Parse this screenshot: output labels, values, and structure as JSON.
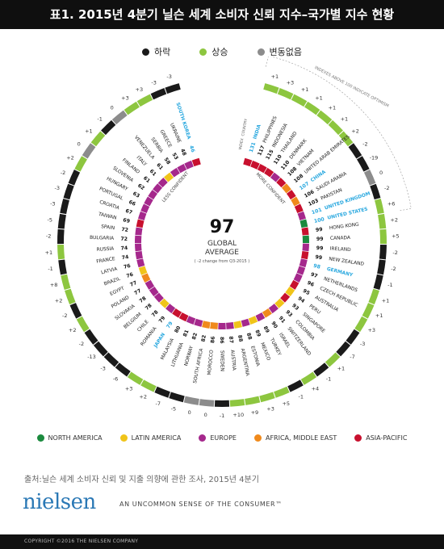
{
  "title": "표1. 2015년 4분기 닐슨 세계 소비자 신뢰 지수–국가별 지수 현황",
  "status_legend": [
    {
      "label": "하락",
      "color": "#1a1a1a"
    },
    {
      "label": "상승",
      "color": "#8dc63f"
    },
    {
      "label": "변동없음",
      "color": "#8c8c8c"
    }
  ],
  "chart_data": {
    "type": "radial-bar",
    "title": "97",
    "center_value": "97",
    "center_label_1": "GLOBAL",
    "center_label_2": "AVERAGE",
    "center_note": "( -2 change from Q3-2015 )",
    "less_confident_label": "LESS CONFIDENT",
    "more_confident_label": "MORE CONFIDENT",
    "optimism_note": "INDEXES ABOVE 100 INDICATE OPTIMISM",
    "header_labels": [
      "INDEX",
      "COUNTRY"
    ],
    "region_colors": {
      "NA": "#1b8a3e",
      "LA": "#f0c419",
      "EU": "#a5288c",
      "AME": "#f08a1c",
      "AP": "#c8102e"
    },
    "status_colors": {
      "down": "#1a1a1a",
      "up": "#8dc63f",
      "same": "#8c8c8c"
    },
    "highlight_color": "#29a8df",
    "countries": [
      {
        "country": "INDIA",
        "index": 131,
        "change": "+1",
        "region": "AP",
        "hl": true
      },
      {
        "country": "PHILIPPINES",
        "index": 117,
        "change": "+3",
        "region": "AP"
      },
      {
        "country": "INDONESIA",
        "index": 115,
        "change": "+1",
        "region": "AP"
      },
      {
        "country": "THAILAND",
        "index": 110,
        "change": "+1",
        "region": "AP"
      },
      {
        "country": "DENMARK",
        "index": 110,
        "change": "+1",
        "region": "EU"
      },
      {
        "country": "VIETNAM",
        "index": 108,
        "change": "+1",
        "region": "AP"
      },
      {
        "country": "UNITED ARAB EMIRATES",
        "index": 108,
        "change": "+2",
        "region": "AME"
      },
      {
        "country": "CHINA",
        "index": 107,
        "change": "-2",
        "region": "AP",
        "hl": true
      },
      {
        "country": "SAUDI ARABIA",
        "index": 106,
        "change": "-19",
        "region": "AME"
      },
      {
        "country": "PAKISTAN",
        "index": 103,
        "change": "0",
        "region": "AP"
      },
      {
        "country": "UNITED KINGDOM",
        "index": 101,
        "change": "-2",
        "region": "EU",
        "hl": true
      },
      {
        "country": "UNITED STATES",
        "index": 100,
        "change": "+6",
        "region": "NA",
        "hl": true
      },
      {
        "country": "HONG KONG",
        "index": 99,
        "change": "+2",
        "region": "AP"
      },
      {
        "country": "CANADA",
        "index": 99,
        "change": "+5",
        "region": "NA"
      },
      {
        "country": "IRELAND",
        "index": 99,
        "change": "-2",
        "region": "EU"
      },
      {
        "country": "NEW ZEALAND",
        "index": 99,
        "change": "-2",
        "region": "AP"
      },
      {
        "country": "GERMANY",
        "index": 98,
        "change": "-1",
        "region": "EU",
        "hl": true
      },
      {
        "country": "NETHERLANDS",
        "index": 97,
        "change": "+1",
        "region": "EU"
      },
      {
        "country": "CZECH REPUBLIC",
        "index": 96,
        "change": "+1",
        "region": "EU"
      },
      {
        "country": "AUSTRALIA",
        "index": 95,
        "change": "+3",
        "region": "AP"
      },
      {
        "country": "PERU",
        "index": 94,
        "change": "-3",
        "region": "LA"
      },
      {
        "country": "SINGAPORE",
        "index": 93,
        "change": "-7",
        "region": "AP"
      },
      {
        "country": "COLOMBIA",
        "index": 93,
        "change": "+1",
        "region": "LA"
      },
      {
        "country": "SWITZERLAND",
        "index": 91,
        "change": "-1",
        "region": "EU"
      },
      {
        "country": "ISRAEL",
        "index": 90,
        "change": "+4",
        "region": "AME"
      },
      {
        "country": "TURKEY",
        "index": 89,
        "change": "-1",
        "region": "EU"
      },
      {
        "country": "MEXICO",
        "index": 89,
        "change": "+5",
        "region": "LA"
      },
      {
        "country": "ESTONIA",
        "index": 88,
        "change": "+3",
        "region": "EU"
      },
      {
        "country": "ARGENTINA",
        "index": 88,
        "change": "+9",
        "region": "LA"
      },
      {
        "country": "AUSTRIA",
        "index": 87,
        "change": "+10",
        "region": "EU"
      },
      {
        "country": "SWEDEN",
        "index": 86,
        "change": "-1",
        "region": "EU"
      },
      {
        "country": "MOROCCO",
        "index": 86,
        "change": "0",
        "region": "AME"
      },
      {
        "country": "SOUTH AFRICA",
        "index": 82,
        "change": "0",
        "region": "AME"
      },
      {
        "country": "NORWAY",
        "index": 82,
        "change": "-5",
        "region": "EU"
      },
      {
        "country": "LITHUANIA",
        "index": 81,
        "change": "-7",
        "region": "EU"
      },
      {
        "country": "MALAYSIA",
        "index": 80,
        "change": "+2",
        "region": "AP"
      },
      {
        "country": "JAPAN",
        "index": 79,
        "change": "+3",
        "region": "AP",
        "hl": true
      },
      {
        "country": "ROMANIA",
        "index": 79,
        "change": "-6",
        "region": "EU"
      },
      {
        "country": "CHILE",
        "index": 78,
        "change": "-3",
        "region": "LA"
      },
      {
        "country": "BELGIUM",
        "index": 78,
        "change": "-13",
        "region": "EU"
      },
      {
        "country": "SLOVAKIA",
        "index": 78,
        "change": "-2",
        "region": "EU"
      },
      {
        "country": "POLAND",
        "index": 77,
        "change": "+2",
        "region": "EU"
      },
      {
        "country": "EGYPT",
        "index": 77,
        "change": "-2",
        "region": "AME"
      },
      {
        "country": "BRAZIL",
        "index": 76,
        "change": "+2",
        "region": "LA"
      },
      {
        "country": "LATVIA",
        "index": 76,
        "change": "+8",
        "region": "EU"
      },
      {
        "country": "FRANCE",
        "index": 74,
        "change": "-1",
        "region": "EU"
      },
      {
        "country": "RUSSIA",
        "index": 74,
        "change": "+1",
        "region": "EU"
      },
      {
        "country": "BULGARIA",
        "index": 72,
        "change": "-2",
        "region": "EU"
      },
      {
        "country": "SPAIN",
        "index": 72,
        "change": "-5",
        "region": "EU"
      },
      {
        "country": "TAIWAN",
        "index": 69,
        "change": "-3",
        "region": "AP"
      },
      {
        "country": "CROATIA",
        "index": 67,
        "change": "-3",
        "region": "EU"
      },
      {
        "country": "PORTUGAL",
        "index": 66,
        "change": "-2",
        "region": "EU"
      },
      {
        "country": "HUNGARY",
        "index": 63,
        "change": "+2",
        "region": "EU"
      },
      {
        "country": "SLOVENIA",
        "index": 62,
        "change": "0",
        "region": "EU"
      },
      {
        "country": "FINLAND",
        "index": 61,
        "change": "+1",
        "region": "EU"
      },
      {
        "country": "ITALY",
        "index": 61,
        "change": "-1",
        "region": "EU"
      },
      {
        "country": "VENEZUELA",
        "index": 61,
        "change": "0",
        "region": "LA"
      },
      {
        "country": "SERBIA",
        "index": 58,
        "change": "+3",
        "region": "EU"
      },
      {
        "country": "GREECE",
        "index": 53,
        "change": "+3",
        "region": "EU"
      },
      {
        "country": "UKRAINE",
        "index": 48,
        "change": "-3",
        "region": "EU"
      },
      {
        "country": "SOUTH KOREA",
        "index": 46,
        "change": "-3",
        "region": "AP",
        "hl": true
      }
    ]
  },
  "region_legend": [
    {
      "label": "NORTH AMERICA",
      "color": "#1b8a3e"
    },
    {
      "label": "LATIN AMERICA",
      "color": "#f0c419"
    },
    {
      "label": "EUROPE",
      "color": "#a5288c"
    },
    {
      "label": "AFRICA, MIDDLE EAST",
      "color": "#f08a1c"
    },
    {
      "label": "ASIA-PACIFIC",
      "color": "#c8102e"
    }
  ],
  "source": "출처:닐슨 세계 소비자 신뢰 및 지출 의향에 관한 조사, 2015년 4분기",
  "brand": "nielsen",
  "tagline": "AN UNCOMMON SENSE OF THE CONSUMER™",
  "footer": "COPYRIGHT ©2016 THE NIELSEN COMPANY"
}
